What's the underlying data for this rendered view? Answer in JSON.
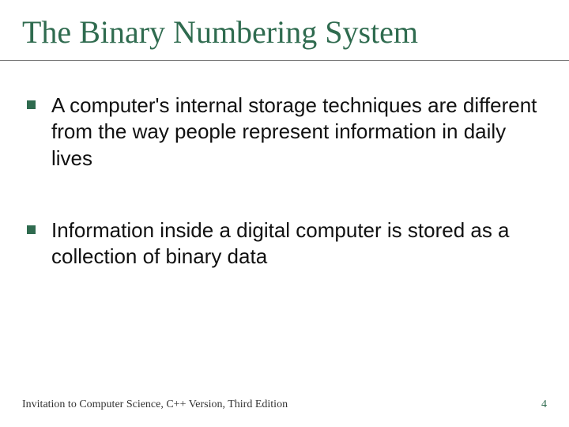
{
  "colors": {
    "accent": "#2f6b4f",
    "text": "#111111",
    "footer_text": "#333333",
    "rule": "#7a7a7a",
    "background": "#ffffff"
  },
  "typography": {
    "title_family": "Garamond serif",
    "title_size_pt": 30,
    "body_family": "Arial sans-serif",
    "body_size_pt": 19,
    "footer_size_pt": 10
  },
  "title": "The Binary Numbering System",
  "bullets": [
    "A computer's internal storage techniques are different from the way people represent information in daily lives",
    "Information inside a digital computer is stored as a collection of binary data"
  ],
  "footer": {
    "source": "Invitation to Computer Science, C++ Version, Third Edition",
    "page": "4"
  }
}
